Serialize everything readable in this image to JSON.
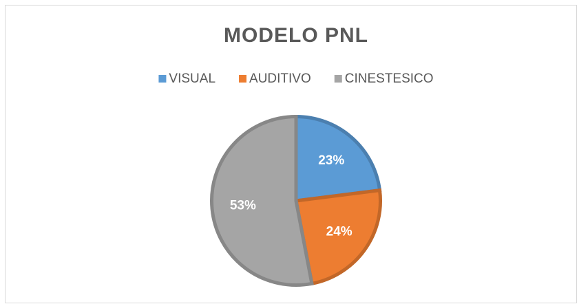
{
  "chart_data": {
    "type": "pie",
    "title": "MODELO PNL",
    "categories": [
      "VISUAL",
      "AUDITIVO",
      "CINESTESICO"
    ],
    "values": [
      23,
      24,
      53
    ],
    "value_labels": [
      "23%",
      "24%",
      "53%"
    ],
    "colors": [
      "#5b9bd5",
      "#ed7d31",
      "#a5a5a5"
    ],
    "legend": "top"
  }
}
